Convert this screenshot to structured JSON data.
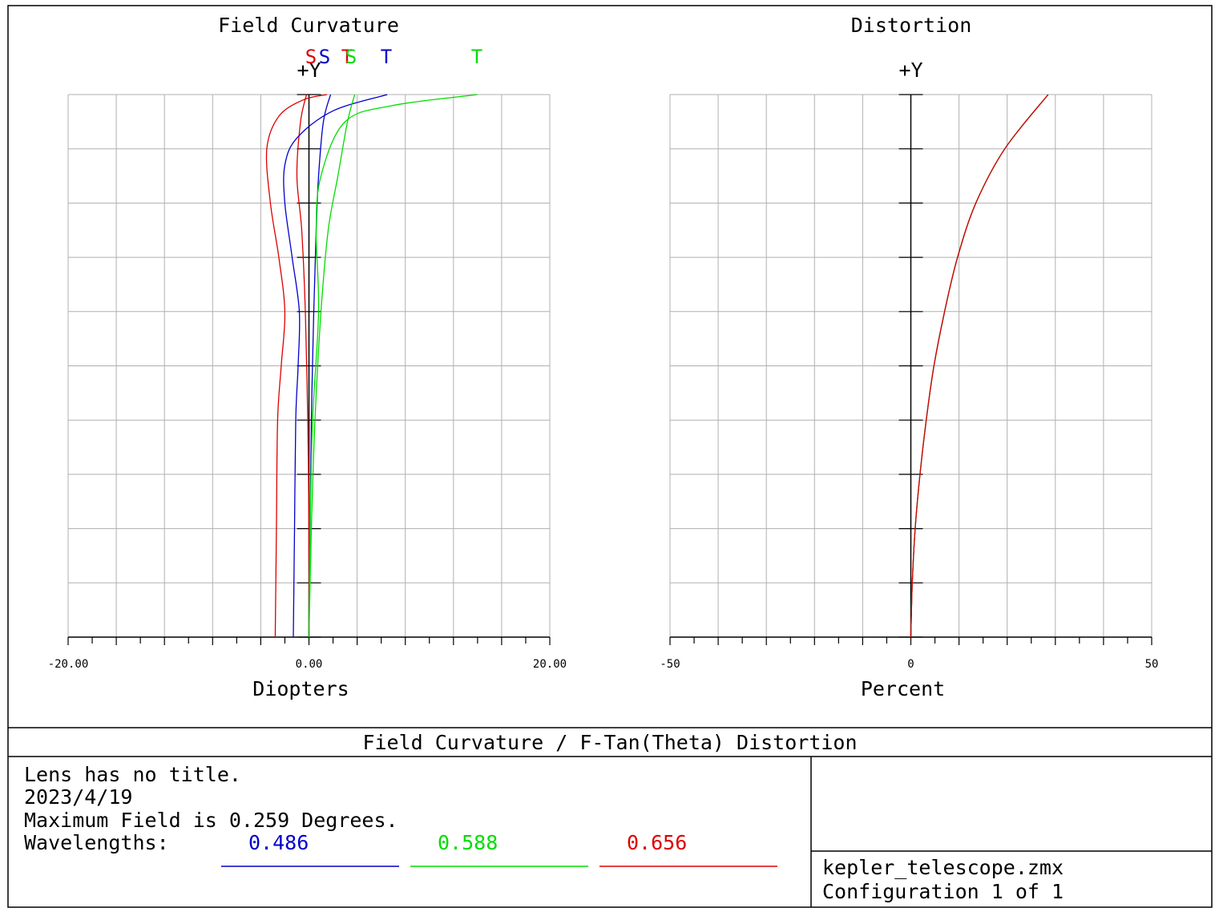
{
  "colors": {
    "blue": "#0000cc",
    "green": "#00dd00",
    "red": "#dd0000",
    "grid": "#b0b0b0"
  },
  "footer": {
    "title": "Field Curvature / F-Tan(Theta) Distortion",
    "lens_title": "Lens has no title.",
    "date": "2023/4/19",
    "max_field": "Maximum Field is 0.259 Degrees.",
    "wavelengths_label": "Wavelengths:",
    "wavelengths": [
      {
        "value": "0.486",
        "color": "#0000cc"
      },
      {
        "value": "0.588",
        "color": "#00dd00"
      },
      {
        "value": "0.656",
        "color": "#dd0000"
      }
    ],
    "file": "kepler_telescope.zmx",
    "configuration": "Configuration 1 of 1"
  },
  "chart_data": [
    {
      "type": "line",
      "title": "Field Curvature",
      "xlabel": "Diopters",
      "ylabel": "+Y",
      "xlim": [
        -20,
        20
      ],
      "ylim": [
        0,
        1
      ],
      "x_tick_labels": [
        "-20.00",
        "0.00",
        "20.00"
      ],
      "grid": true,
      "legend_labels": [
        {
          "text": "S",
          "color": "#dd0000"
        },
        {
          "text": "S",
          "color": "#0000cc"
        },
        {
          "text": "T",
          "color": "#dd0000"
        },
        {
          "text": "S",
          "color": "#00dd00"
        },
        {
          "text": "T",
          "color": "#0000cc"
        },
        {
          "text": "T",
          "color": "#00dd00"
        }
      ],
      "series": [
        {
          "color": "#dd0000",
          "points": [
            [
              -2.8,
              0
            ],
            [
              -2.7,
              0.2
            ],
            [
              -2.6,
              0.4
            ],
            [
              -2.3,
              0.5
            ],
            [
              -2.0,
              0.6
            ],
            [
              -2.5,
              0.7
            ],
            [
              -3.2,
              0.8
            ],
            [
              -3.5,
              0.9
            ],
            [
              -2.5,
              0.96
            ],
            [
              -0.5,
              0.99
            ],
            [
              1.5,
              1.0
            ]
          ]
        },
        {
          "color": "#dd0000",
          "points": [
            [
              0,
              0
            ],
            [
              0,
              0.2
            ],
            [
              -0.1,
              0.4
            ],
            [
              -0.3,
              0.6
            ],
            [
              -0.6,
              0.75
            ],
            [
              -1.0,
              0.85
            ],
            [
              -0.7,
              0.95
            ],
            [
              -0.2,
              1.0
            ]
          ]
        },
        {
          "color": "#0000cc",
          "points": [
            [
              -1.3,
              0
            ],
            [
              -1.2,
              0.2
            ],
            [
              -1.1,
              0.4
            ],
            [
              -0.9,
              0.5
            ],
            [
              -0.8,
              0.6
            ],
            [
              -1.4,
              0.7
            ],
            [
              -2.0,
              0.8
            ],
            [
              -2.0,
              0.87
            ],
            [
              -1.0,
              0.92
            ],
            [
              2,
              0.97
            ],
            [
              6.5,
              1.0
            ]
          ]
        },
        {
          "color": "#0000cc",
          "points": [
            [
              0,
              0
            ],
            [
              0.1,
              0.2
            ],
            [
              0.2,
              0.4
            ],
            [
              0.4,
              0.6
            ],
            [
              0.6,
              0.75
            ],
            [
              0.8,
              0.85
            ],
            [
              1.2,
              0.95
            ],
            [
              1.8,
              1.0
            ]
          ]
        },
        {
          "color": "#00dd00",
          "points": [
            [
              0,
              0
            ],
            [
              0.1,
              0.2
            ],
            [
              0.3,
              0.4
            ],
            [
              0.8,
              0.6
            ],
            [
              0.6,
              0.75
            ],
            [
              1.0,
              0.85
            ],
            [
              3,
              0.95
            ],
            [
              7,
              0.98
            ],
            [
              14,
              1.0
            ]
          ]
        },
        {
          "color": "#00dd00",
          "points": [
            [
              0,
              0
            ],
            [
              0.2,
              0.2
            ],
            [
              0.5,
              0.4
            ],
            [
              1.0,
              0.6
            ],
            [
              1.6,
              0.75
            ],
            [
              2.4,
              0.85
            ],
            [
              3.2,
              0.95
            ],
            [
              3.8,
              1.0
            ]
          ]
        }
      ]
    },
    {
      "type": "line",
      "title": "Distortion",
      "xlabel": "Percent",
      "ylabel": "+Y",
      "xlim": [
        -50,
        50
      ],
      "ylim": [
        0,
        1
      ],
      "x_tick_labels": [
        "-50",
        "0",
        "50"
      ],
      "grid": true,
      "series": [
        {
          "color": "#0000cc",
          "points": [
            [
              0,
              0
            ],
            [
              0.3,
              0.1
            ],
            [
              0.9,
              0.2
            ],
            [
              1.9,
              0.3
            ],
            [
              3.2,
              0.4
            ],
            [
              4.8,
              0.5
            ],
            [
              7.0,
              0.6
            ],
            [
              9.7,
              0.7
            ],
            [
              13.5,
              0.8
            ],
            [
              19.5,
              0.9
            ],
            [
              28.5,
              1.0
            ]
          ]
        },
        {
          "color": "#00dd00",
          "points": [
            [
              0,
              0
            ],
            [
              0.3,
              0.1
            ],
            [
              0.9,
              0.2
            ],
            [
              1.9,
              0.3
            ],
            [
              3.2,
              0.4
            ],
            [
              4.8,
              0.5
            ],
            [
              7.0,
              0.6
            ],
            [
              9.7,
              0.7
            ],
            [
              13.5,
              0.8
            ],
            [
              19.5,
              0.9
            ],
            [
              28.5,
              1.0
            ]
          ]
        },
        {
          "color": "#dd0000",
          "points": [
            [
              0,
              0
            ],
            [
              0.3,
              0.1
            ],
            [
              0.9,
              0.2
            ],
            [
              1.9,
              0.3
            ],
            [
              3.2,
              0.4
            ],
            [
              4.8,
              0.5
            ],
            [
              7.0,
              0.6
            ],
            [
              9.7,
              0.7
            ],
            [
              13.5,
              0.8
            ],
            [
              19.5,
              0.9
            ],
            [
              28.5,
              1.0
            ]
          ]
        }
      ]
    }
  ]
}
